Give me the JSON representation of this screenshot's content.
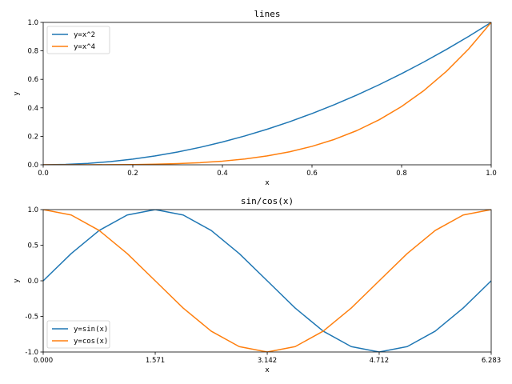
{
  "chart_data": [
    {
      "type": "line",
      "title": "lines",
      "xlabel": "x",
      "ylabel": "y",
      "xlim": [
        0.0,
        1.0
      ],
      "ylim": [
        0.0,
        1.0
      ],
      "xticks": [
        "0.0",
        "0.2",
        "0.4",
        "0.6",
        "0.8",
        "1.0"
      ],
      "yticks": [
        "0.0",
        "0.2",
        "0.4",
        "0.6",
        "0.8",
        "1.0"
      ],
      "grid": false,
      "legend_position": "top-left",
      "x": [
        0.0,
        0.05,
        0.1,
        0.15,
        0.2,
        0.25,
        0.3,
        0.35,
        0.4,
        0.45,
        0.5,
        0.55,
        0.6,
        0.65,
        0.7,
        0.75,
        0.8,
        0.85,
        0.9,
        0.95,
        1.0
      ],
      "series": [
        {
          "name": "y=x^2",
          "color": "#1f77b4",
          "values": [
            0.0,
            0.0025,
            0.01,
            0.0225,
            0.04,
            0.0625,
            0.09,
            0.1225,
            0.16,
            0.2025,
            0.25,
            0.3025,
            0.36,
            0.4225,
            0.49,
            0.5625,
            0.64,
            0.7225,
            0.81,
            0.9025,
            1.0
          ]
        },
        {
          "name": "y=x^4",
          "color": "#ff7f0e",
          "values": [
            0.0,
            0.0,
            0.0001,
            0.0005,
            0.0016,
            0.0039,
            0.0081,
            0.015,
            0.0256,
            0.041,
            0.0625,
            0.0915,
            0.1296,
            0.1785,
            0.2401,
            0.3164,
            0.4096,
            0.522,
            0.6561,
            0.8145,
            1.0
          ]
        }
      ]
    },
    {
      "type": "line",
      "title": "sin/cos(x)",
      "xlabel": "x",
      "ylabel": "y",
      "xlim": [
        0.0,
        6.283
      ],
      "ylim": [
        -1.0,
        1.0
      ],
      "xticks": [
        "0.000",
        "1.571",
        "3.142",
        "4.712",
        "6.283"
      ],
      "yticks": [
        "-1.0",
        "-0.5",
        "0.0",
        "0.5",
        "1.0"
      ],
      "grid": false,
      "legend_position": "bottom-left",
      "x": [
        0.0,
        0.393,
        0.785,
        1.178,
        1.571,
        1.963,
        2.356,
        2.749,
        3.142,
        3.534,
        3.927,
        4.32,
        4.712,
        5.105,
        5.498,
        5.89,
        6.283
      ],
      "series": [
        {
          "name": "y=sin(x)",
          "color": "#1f77b4",
          "values": [
            0.0,
            0.383,
            0.707,
            0.924,
            1.0,
            0.924,
            0.707,
            0.383,
            0.0,
            -0.383,
            -0.707,
            -0.924,
            -1.0,
            -0.924,
            -0.707,
            -0.383,
            0.0
          ]
        },
        {
          "name": "y=cos(x)",
          "color": "#ff7f0e",
          "values": [
            1.0,
            0.924,
            0.707,
            0.383,
            0.0,
            -0.383,
            -0.707,
            -0.924,
            -1.0,
            -0.924,
            -0.707,
            -0.383,
            0.0,
            0.383,
            0.707,
            0.924,
            1.0
          ]
        }
      ]
    }
  ]
}
